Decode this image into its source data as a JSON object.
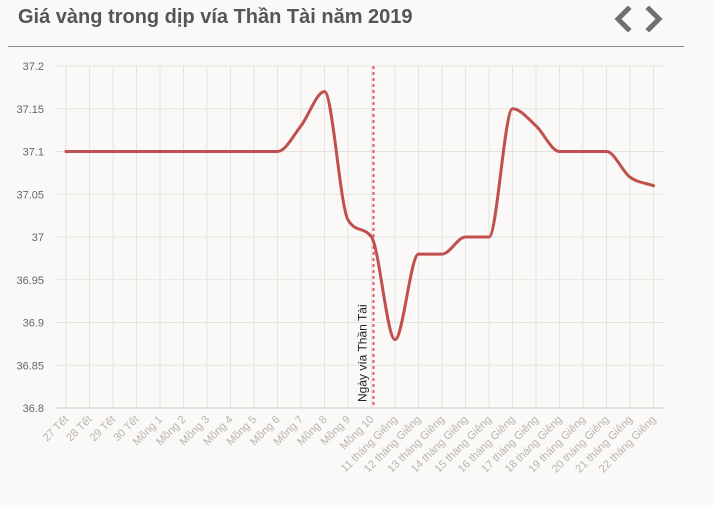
{
  "header": {
    "title": "Giá vàng trong dịp vía Thần Tài năm 2019",
    "prev_icon": "chevron-left-icon",
    "next_icon": "chevron-right-icon"
  },
  "colors": {
    "line": "#c0504d",
    "marker": "#e05a66",
    "nav": "#707070",
    "grid": "#e6e3df"
  },
  "chart_data": {
    "type": "line",
    "title": "Giá vàng trong dịp vía Thần Tài năm 2019",
    "categories": [
      "27 Tết",
      "28 Tết",
      "29 Tết",
      "30 Tết",
      "Mồng 1",
      "Mồng 2",
      "Mồng 3",
      "Mồng 4",
      "Mồng 5",
      "Mồng 6",
      "Mồng 7",
      "Mồng 8",
      "Mồng 9",
      "Mồng 10",
      "11 tháng Giêng",
      "12 tháng Giêng",
      "13 tháng Giêng",
      "14 tháng Giêng",
      "15 tháng Giêng",
      "16 tháng Giêng",
      "17 tháng Giêng",
      "18 tháng Giêng",
      "19 tháng Giêng",
      "20 tháng Giêng",
      "21 tháng Giêng",
      "22 tháng Giêng"
    ],
    "values": [
      37.1,
      37.1,
      37.1,
      37.1,
      37.1,
      37.1,
      37.1,
      37.1,
      37.1,
      37.1,
      37.13,
      37.17,
      37.02,
      37.0,
      36.88,
      36.98,
      36.98,
      37.0,
      37.0,
      37.15,
      37.13,
      37.1,
      37.1,
      37.1,
      37.07,
      37.06
    ],
    "ylim": [
      36.8,
      37.2
    ],
    "yticks": [
      "36.8",
      "36.85",
      "36.9",
      "36.95",
      "37",
      "37.05",
      "37.1",
      "37.15",
      "37.2"
    ],
    "grid": true,
    "annotation": {
      "label": "Ngày vía Thần Tài",
      "category": "Mồng 10"
    }
  }
}
